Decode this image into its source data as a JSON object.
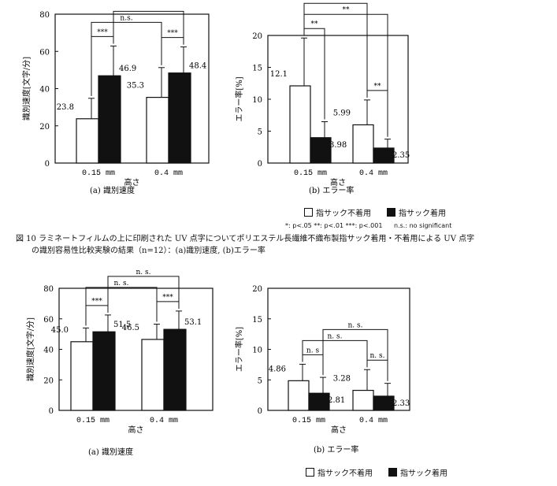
{
  "chart_data": [
    {
      "type": "bar",
      "caption": "(a)  識別速度",
      "ylabel": "識別速度[文字/分]",
      "xlabel": "高さ",
      "ylim": [
        0,
        80
      ],
      "yticks": [
        "0",
        "20",
        "40",
        "60",
        "80"
      ],
      "categories": [
        "0.15 mm",
        "0.4 mm"
      ],
      "series": [
        {
          "key": "without",
          "values": [
            23.8,
            35.3
          ],
          "errors": [
            11,
            16
          ],
          "labels": [
            "23.8",
            "35.3"
          ],
          "fill": "#ffffff"
        },
        {
          "key": "with",
          "values": [
            46.9,
            48.4
          ],
          "errors": [
            16,
            14
          ],
          "labels": [
            "46.9",
            "48.4"
          ],
          "fill": "#111111"
        }
      ],
      "significance": [
        {
          "from": [
            0,
            0
          ],
          "to": [
            0,
            1
          ],
          "label": "***",
          "level": 0
        },
        {
          "from": [
            1,
            0
          ],
          "to": [
            1,
            1
          ],
          "label": "***",
          "level": 0
        },
        {
          "from": [
            0,
            0
          ],
          "to": [
            1,
            0
          ],
          "label": "n.s.",
          "level": 1
        },
        {
          "from": [
            0,
            1
          ],
          "to": [
            1,
            1
          ],
          "label": "",
          "level": 2
        }
      ]
    },
    {
      "type": "bar",
      "caption": "(b)  エラー率",
      "ylabel": "エラー率[%]",
      "xlabel": "高さ",
      "ylim": [
        0,
        20
      ],
      "yticks": [
        "0",
        "5",
        "10",
        "15",
        "20"
      ],
      "categories": [
        "0.15 mm",
        "0.4 mm"
      ],
      "series": [
        {
          "key": "without",
          "values": [
            12.1,
            5.99
          ],
          "errors": [
            7.5,
            3.9
          ],
          "labels": [
            "12.1",
            "5.99"
          ],
          "fill": "#ffffff"
        },
        {
          "key": "with",
          "values": [
            3.98,
            2.35
          ],
          "errors": [
            2.5,
            1.4
          ],
          "labels": [
            "3.98",
            "2.35"
          ],
          "fill": "#111111"
        }
      ],
      "significance": [
        {
          "from": [
            0,
            0
          ],
          "to": [
            0,
            1
          ],
          "label": "**",
          "level": 0
        },
        {
          "from": [
            1,
            0
          ],
          "to": [
            1,
            1
          ],
          "label": "**",
          "level": 0
        },
        {
          "from": [
            0,
            0
          ],
          "to": [
            1,
            1
          ],
          "label": "**",
          "level": 1
        },
        {
          "from": [
            0,
            0
          ],
          "to": [
            1,
            0
          ],
          "label": "*",
          "level": 2
        }
      ]
    },
    {
      "type": "bar",
      "caption": "(a)  識別速度",
      "ylabel": "識別速度[文字/分]",
      "xlabel": "高さ",
      "ylim": [
        0,
        80
      ],
      "yticks": [
        "0",
        "20",
        "40",
        "60",
        "80"
      ],
      "categories": [
        "0.15 mm",
        "0.4 mm"
      ],
      "series": [
        {
          "key": "without",
          "values": [
            45.0,
            46.5
          ],
          "errors": [
            9,
            10
          ],
          "labels": [
            "45.0",
            "46.5"
          ],
          "fill": "#ffffff"
        },
        {
          "key": "with",
          "values": [
            51.5,
            53.1
          ],
          "errors": [
            11,
            12
          ],
          "labels": [
            "51.5",
            "53.1"
          ],
          "fill": "#111111"
        }
      ],
      "significance": [
        {
          "from": [
            0,
            0
          ],
          "to": [
            0,
            1
          ],
          "label": "***",
          "level": 0
        },
        {
          "from": [
            1,
            0
          ],
          "to": [
            1,
            1
          ],
          "label": "***",
          "level": 0
        },
        {
          "from": [
            0,
            0
          ],
          "to": [
            1,
            0
          ],
          "label": "n. s.",
          "level": 1
        },
        {
          "from": [
            0,
            1
          ],
          "to": [
            1,
            1
          ],
          "label": "n. s.",
          "level": 2
        }
      ]
    },
    {
      "type": "bar",
      "caption": "(b)  エラー率",
      "ylabel": "エラー率[%]",
      "xlabel": "高さ",
      "ylim": [
        0,
        20
      ],
      "yticks": [
        "0",
        "5",
        "10",
        "15",
        "20"
      ],
      "categories": [
        "0.15 mm",
        "0.4 mm"
      ],
      "series": [
        {
          "key": "without",
          "values": [
            4.86,
            3.28
          ],
          "errors": [
            2.7,
            3.4
          ],
          "labels": [
            "4.86",
            "3.28"
          ],
          "fill": "#ffffff"
        },
        {
          "key": "with",
          "values": [
            2.81,
            2.33
          ],
          "errors": [
            2.6,
            2.1
          ],
          "labels": [
            "2.81",
            "2.33"
          ],
          "fill": "#111111"
        }
      ],
      "significance": [
        {
          "from": [
            0,
            0
          ],
          "to": [
            0,
            1
          ],
          "label": "n. s",
          "level": 0
        },
        {
          "from": [
            1,
            0
          ],
          "to": [
            1,
            1
          ],
          "label": "n. s.",
          "level": 0
        },
        {
          "from": [
            0,
            0
          ],
          "to": [
            1,
            0
          ],
          "label": "n. s.",
          "level": 1
        },
        {
          "from": [
            0,
            1
          ],
          "to": [
            1,
            1
          ],
          "label": "n. s.",
          "level": 2
        }
      ]
    }
  ],
  "legend_top": {
    "without": "指サック不着用",
    "with": "指サック着用"
  },
  "legend_bottom": {
    "without": "指サック不着用",
    "with": "指サック着用"
  },
  "significance_note": "*: p<.05  **: p<.01 ***: p<.001",
  "ns_note": "n.s.: no significant",
  "figure_caption_line1": "図 10  ラミネートフィルムの上に印刷された UV 点字についてポリエステル長繊維不織布製指サック着用・不着用による UV 点字",
  "figure_caption_line2": "の識別容易性比較実験の結果（n=12）：(a)識別速度, (b)エラー率"
}
